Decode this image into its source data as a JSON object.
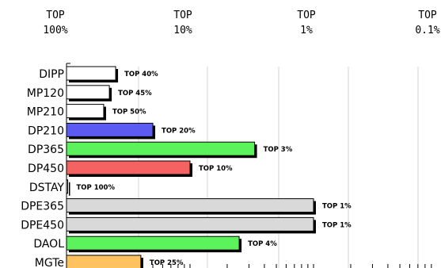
{
  "header": [
    {
      "line1": "TOP",
      "line2": "100%"
    },
    {
      "line1": "TOP",
      "line2": "10%"
    },
    {
      "line1": "TOP",
      "line2": "1%"
    },
    {
      "line1": "TOP",
      "line2": "0.1%"
    }
  ],
  "chart_data": {
    "type": "bar",
    "orientation": "horizontal",
    "xlabel": "",
    "ylabel": "",
    "x_scale": "log",
    "x_ticks_top": [
      "TOP 100%",
      "TOP 10%",
      "TOP 1%",
      "TOP 0.1%"
    ],
    "categories": [
      "DIPP",
      "MP120",
      "MP210",
      "DP210",
      "DP365",
      "DP450",
      "DSTAY",
      "DPE365",
      "DPE450",
      "DAOL",
      "MGTe"
    ],
    "values": [
      40,
      45,
      50,
      20,
      3,
      10,
      100,
      1,
      1,
      4,
      25
    ],
    "labels": [
      "TOP 40%",
      "TOP 45%",
      "TOP 50%",
      "TOP 20%",
      "TOP 3%",
      "TOP 10%",
      "TOP 100%",
      "TOP 1%",
      "TOP 1%",
      "TOP 4%",
      "TOP 25%"
    ],
    "colors": [
      "#ffffff",
      "#ffffff",
      "#ffffff",
      "#5b5bf2",
      "#5cf25c",
      "#f46262",
      "#ffffff",
      "#d9d9d9",
      "#d9d9d9",
      "#5cf25c",
      "#fec25e"
    ],
    "grid": true
  }
}
